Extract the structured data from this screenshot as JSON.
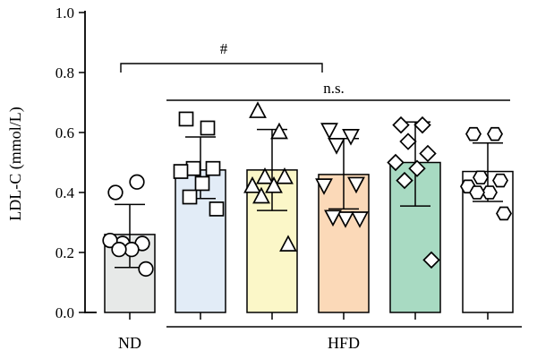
{
  "chart_data": {
    "type": "bar",
    "ylabel": "LDL-C (mmol/L)",
    "ylim": [
      0.0,
      1.0
    ],
    "yticks": [
      "0.0",
      "0.2",
      "0.4",
      "0.6",
      "0.8",
      "1.0"
    ],
    "group_labels": {
      "nd": "ND",
      "hfd": "HFD"
    },
    "annotations": {
      "hash": "#",
      "ns": "n.s."
    },
    "bars": [
      {
        "mean": 0.26,
        "sd_low": 0.15,
        "sd_high": 0.36,
        "fill": "#e7e9e8",
        "marker": "circle",
        "points": [
          0.4,
          0.435,
          0.23,
          0.23,
          0.24,
          0.21,
          0.21,
          0.145
        ]
      },
      {
        "mean": 0.475,
        "sd_low": 0.38,
        "sd_high": 0.585,
        "fill": "#e2ecf7",
        "marker": "square",
        "points": [
          0.645,
          0.615,
          0.48,
          0.48,
          0.47,
          0.43,
          0.385,
          0.345
        ]
      },
      {
        "mean": 0.475,
        "sd_low": 0.34,
        "sd_high": 0.61,
        "fill": "#fbf7c8",
        "marker": "triangle-up",
        "points": [
          0.67,
          0.6,
          0.45,
          0.45,
          0.42,
          0.42,
          0.385,
          0.225
        ]
      },
      {
        "mean": 0.46,
        "sd_low": 0.345,
        "sd_high": 0.58,
        "fill": "#fbd9b8",
        "marker": "triangle-down",
        "points": [
          0.61,
          0.59,
          0.56,
          0.43,
          0.425,
          0.315,
          0.32,
          0.315
        ]
      },
      {
        "mean": 0.5,
        "sd_low": 0.355,
        "sd_high": 0.635,
        "fill": "#a8dac2",
        "marker": "diamond",
        "points": [
          0.625,
          0.625,
          0.57,
          0.53,
          0.5,
          0.48,
          0.44,
          0.175
        ]
      },
      {
        "mean": 0.47,
        "sd_low": 0.37,
        "sd_high": 0.565,
        "fill": "#ffffff",
        "marker": "hexagon",
        "points": [
          0.595,
          0.595,
          0.45,
          0.44,
          0.42,
          0.4,
          0.4,
          0.33
        ]
      }
    ]
  }
}
